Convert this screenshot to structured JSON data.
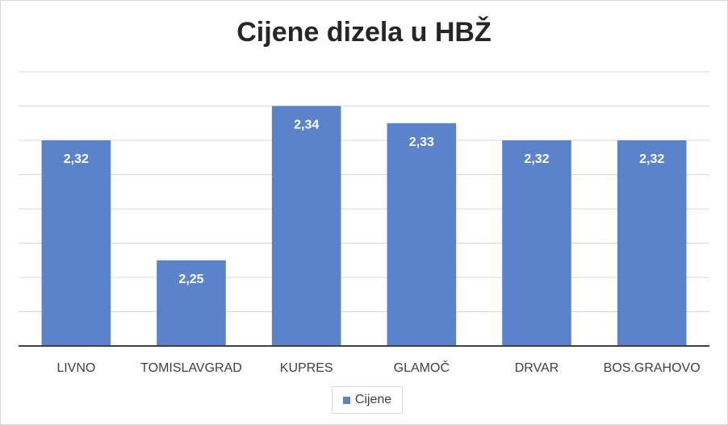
{
  "chart_data": {
    "type": "bar",
    "title": "Cijene dizela u HBŽ",
    "categories": [
      "LIVNO",
      "TOMISLAVGRAD",
      "KUPRES",
      "GLAMOČ",
      "DRVAR",
      "BOS.GRAHOVO"
    ],
    "series": [
      {
        "name": "Cijene",
        "values": [
          2.32,
          2.25,
          2.34,
          2.33,
          2.32,
          2.32
        ],
        "labels": [
          "2,32",
          "2,25",
          "2,34",
          "2,33",
          "2,32",
          "2,32"
        ],
        "color": "#5B83CA"
      }
    ],
    "ylim": [
      2.2,
      2.36
    ],
    "gridlines": true,
    "legend_position": "bottom",
    "xlabel": "",
    "ylabel": ""
  }
}
